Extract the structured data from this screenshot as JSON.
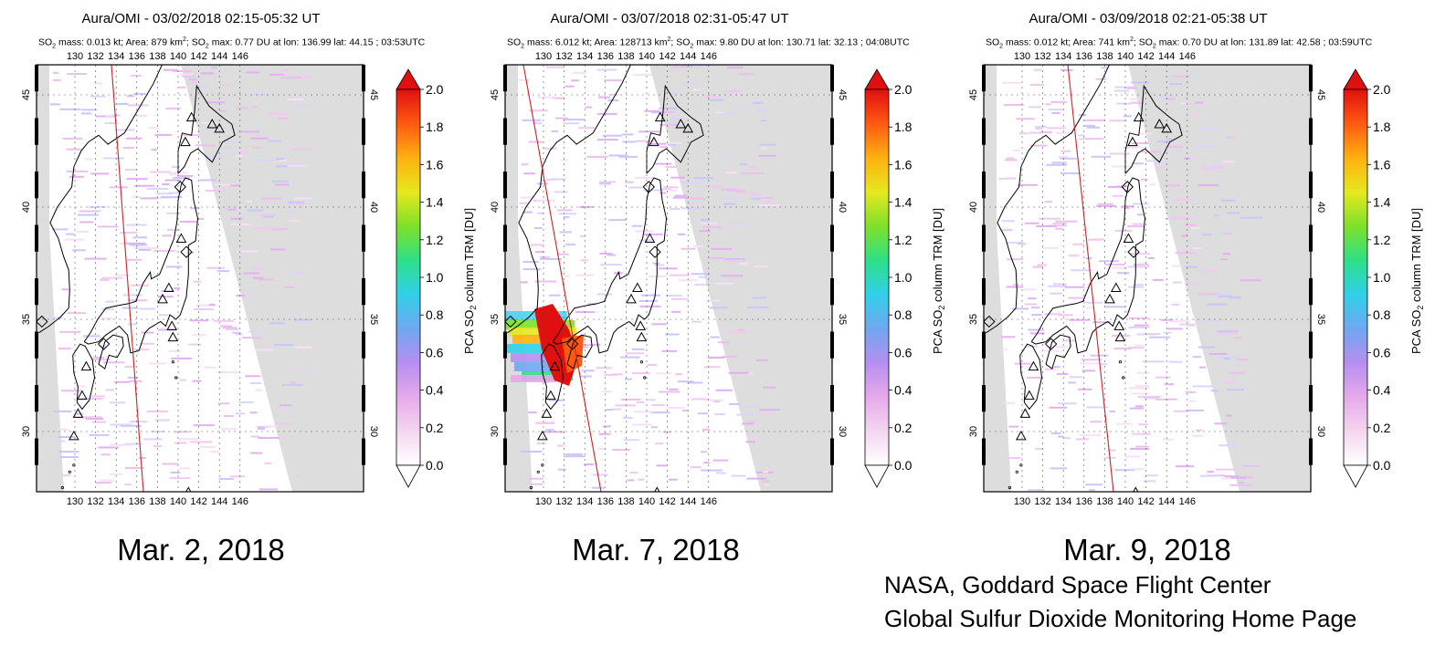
{
  "panels": [
    {
      "title": "Aura/OMI - 03/02/2018 02:15-05:32 UT",
      "subtitle": {
        "so2_label": "SO",
        "so2_sub": "2",
        "mass_text": " mass: 0.013 kt; Area: 879 km",
        "area_sup": "2",
        "max_prefix": "; SO",
        "max_sub": "2",
        "max_text": " max: 0.77 DU at lon: 136.99 lat: 44.15 ; 03:53UTC"
      },
      "caption": "Mar. 2, 2018",
      "plume": false
    },
    {
      "title": "Aura/OMI - 03/07/2018 02:31-05:47 UT",
      "subtitle": {
        "so2_label": "SO",
        "so2_sub": "2",
        "mass_text": " mass: 6.012 kt; Area: 128713 km",
        "area_sup": "2",
        "max_prefix": "; SO",
        "max_sub": "2",
        "max_text": " max: 9.80 DU at lon: 130.71 lat: 32.13 ; 04:08UTC"
      },
      "caption": "Mar. 7, 2018",
      "plume": true
    },
    {
      "title": "Aura/OMI - 03/09/2018 02:21-05:38 UT",
      "subtitle": {
        "so2_label": "SO",
        "so2_sub": "2",
        "mass_text": " mass: 0.012 kt; Area: 741 km",
        "area_sup": "2",
        "max_prefix": "; SO",
        "max_sub": "2",
        "max_text": " max: 0.70 DU at lon: 131.89 lat: 42.58 ; 03:59UTC"
      },
      "caption": "Mar. 9, 2018",
      "plume": false
    }
  ],
  "map": {
    "lon_ticks": [
      "130",
      "132",
      "134",
      "136",
      "138",
      "140",
      "142",
      "144",
      "146"
    ],
    "lat_ticks": [
      "45",
      "40",
      "35",
      "30"
    ]
  },
  "colorbar": {
    "ticks": [
      "2.0",
      "1.8",
      "1.6",
      "1.4",
      "1.2",
      "1.0",
      "0.8",
      "0.6",
      "0.4",
      "0.2",
      "0.0"
    ],
    "label_prefix": "PCA SO",
    "label_sub": "2",
    "label_suffix": " column TRM [DU]",
    "colors": [
      "#ffffff",
      "#f4d6f0",
      "#e5a9ea",
      "#b68ef0",
      "#6fa8f0",
      "#30d0e8",
      "#2ee088",
      "#7ee02a",
      "#e6e81e",
      "#ffb010",
      "#ff5a10",
      "#e01010"
    ]
  },
  "credit": {
    "line1": "NASA, Goddard Space Flight Center",
    "line2": "Global Sulfur Dioxide Monitoring Home Page"
  },
  "colors": {
    "land_mask": "#dddddd",
    "track_line": "#cc2222",
    "plume_core": "#e01010",
    "coast": "#000000"
  }
}
